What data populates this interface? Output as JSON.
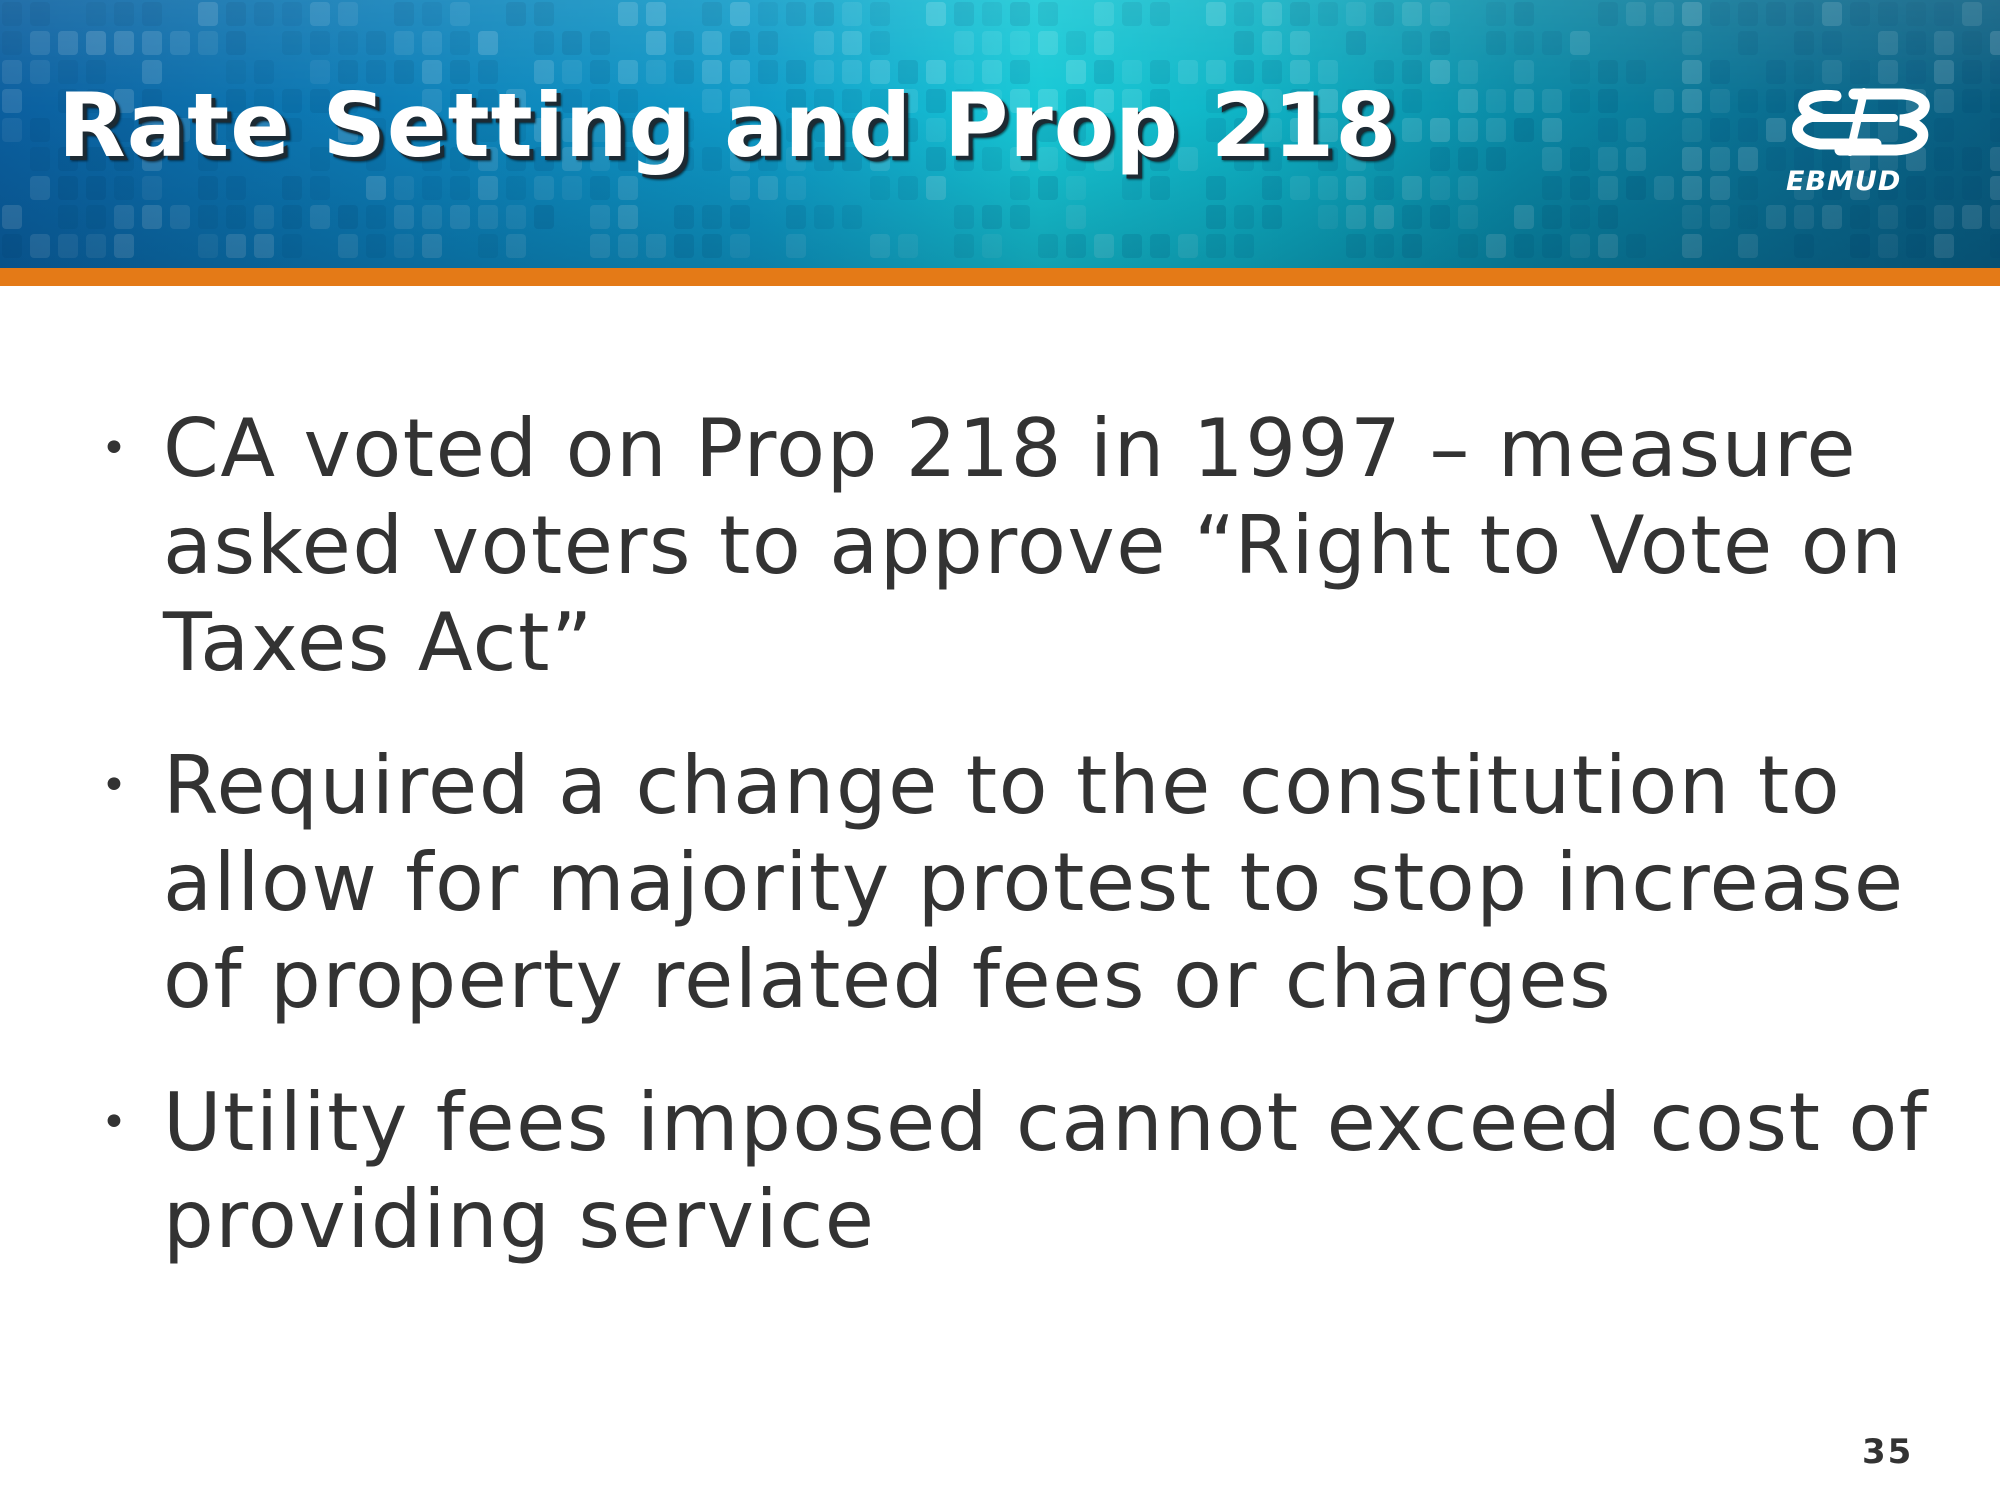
{
  "slide": {
    "title": "Rate Setting and Prop 218",
    "logo_text": "EBMUD",
    "page_number": "35",
    "bullets": [
      {
        "text": "CA voted on Prop 218 in 1997 – measure asked voters to approve “Right to Vote on Taxes Act”"
      },
      {
        "text": "Required a change to the constitution to allow for majority protest to stop increase of property related fees or charges"
      },
      {
        "text": "Utility fees imposed cannot exceed cost of providing service"
      }
    ],
    "bullet_glyph": "•"
  },
  "colors": {
    "header_blue": "#0d7fb8",
    "header_cyan": "#17c9d6",
    "accent_orange": "#e47a17",
    "body_text": "#333333",
    "title_text": "#ffffff"
  },
  "icons": {
    "logo": "ebmud-logo-icon"
  }
}
